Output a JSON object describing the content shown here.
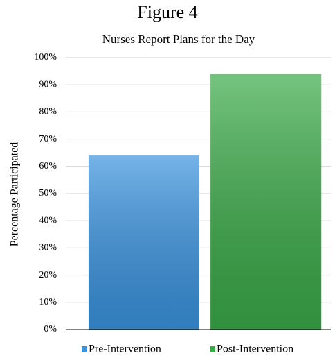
{
  "chart_data": {
    "type": "bar",
    "title": "Figure 4",
    "subtitle": "Nurses Report Plans for the Day",
    "y_label": "Percentage Participated",
    "categories": [
      null
    ],
    "series": [
      {
        "name": "Pre-Intervention",
        "color": "#3a93df",
        "values": [
          64
        ]
      },
      {
        "name": "Post-Intervention",
        "color": "#3aaa48",
        "values": [
          94
        ]
      }
    ],
    "ylim": [
      0,
      100
    ],
    "yticks": [
      {
        "value": 0,
        "label": "0%"
      },
      {
        "value": 10,
        "label": "10%"
      },
      {
        "value": 20,
        "label": "20%"
      },
      {
        "value": 30,
        "label": "30%"
      },
      {
        "value": 40,
        "label": "40%"
      },
      {
        "value": 50,
        "label": "50%"
      },
      {
        "value": 60,
        "label": "60%"
      },
      {
        "value": 70,
        "label": "70%"
      },
      {
        "value": 80,
        "label": "80%"
      },
      {
        "value": 90,
        "label": "90%"
      },
      {
        "value": 100,
        "label": "100%"
      }
    ],
    "grid": true,
    "legend": "bottom"
  }
}
